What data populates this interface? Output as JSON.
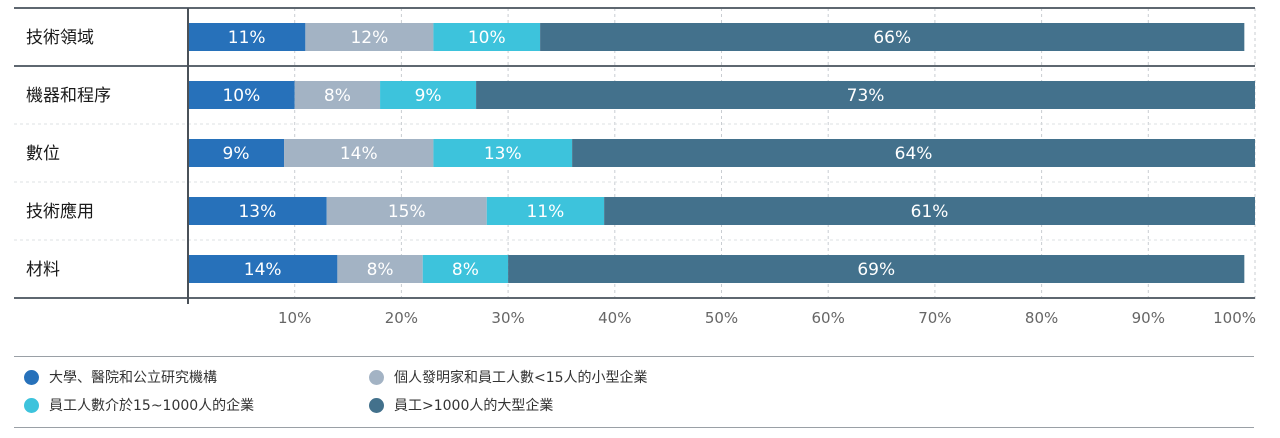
{
  "chart_data": {
    "type": "bar",
    "orientation": "horizontal",
    "stacked": true,
    "categories": [
      "技術領域",
      "機器和程序",
      "數位",
      "技術應用",
      "材料"
    ],
    "series": [
      {
        "name": "大學、醫院和公立研究機構",
        "color": "#2771ba",
        "values": [
          11,
          10,
          9,
          13,
          14
        ]
      },
      {
        "name": "個人發明家和員工人數<15人的小型企業",
        "color": "#a3b3c4",
        "values": [
          12,
          8,
          14,
          15,
          8
        ]
      },
      {
        "name": "員工人數介於15~1000人的企業",
        "color": "#3dc3dc",
        "values": [
          10,
          9,
          13,
          11,
          8
        ]
      },
      {
        "name": "員工>1000人的大型企業",
        "color": "#43718c",
        "values": [
          66,
          73,
          64,
          61,
          69
        ]
      }
    ],
    "value_suffix": "%",
    "xlim": [
      0,
      100
    ],
    "xticks": [
      10,
      20,
      30,
      40,
      50,
      60,
      70,
      80,
      90,
      100
    ],
    "xtick_labels": [
      "10%",
      "20%",
      "30%",
      "40%",
      "50%",
      "60%",
      "70%",
      "80%",
      "90%",
      "100%"
    ],
    "grid": "vertical dashed",
    "legend_position": "bottom"
  }
}
